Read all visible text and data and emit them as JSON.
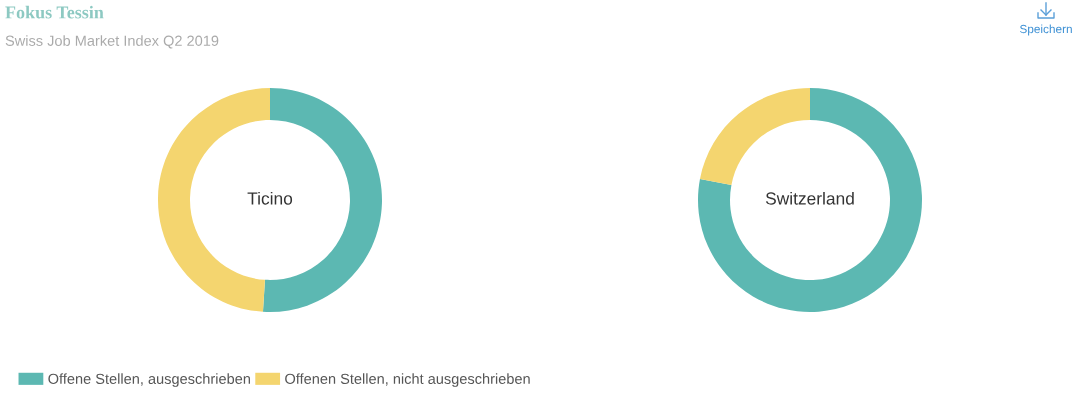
{
  "chart_data": [
    {
      "type": "donut",
      "title": "Fokus Tessin",
      "subtitle": "Swiss Job Market Index Q2 2019",
      "annotations": [
        "Ticino"
      ],
      "categories": [
        "Offene Stellen, ausgeschrieben",
        "Offenen Stellen, nicht ausgeschrieben"
      ],
      "values": [
        51,
        49
      ],
      "colors": [
        "#5cb8b2",
        "#f4d56f"
      ],
      "legend": "bottom left"
    },
    {
      "type": "donut",
      "annotations": [
        "Switzerland",
        "Speichern"
      ],
      "categories": [
        null,
        null
      ],
      "values": [
        78,
        22
      ],
      "colors": [
        "#5cb8b2",
        "#f4d56f"
      ]
    }
  ]
}
